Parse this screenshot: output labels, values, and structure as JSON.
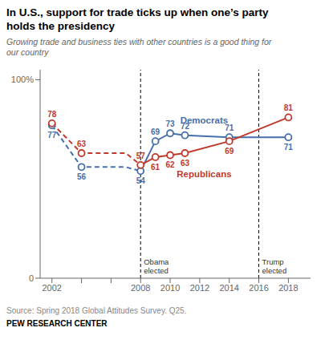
{
  "chart_data": {
    "type": "line",
    "title": "In U.S., support for trade ticks up when one’s party\nholds the presidency",
    "subtitle": "Growing trade and business ties with other countries is a good thing for\nour country",
    "source": "Source: Spring 2018 Global Attitudes Survey. Q25.",
    "footer": "PEW RESEARCH CENTER",
    "x": [
      2002,
      2004,
      2007,
      2008,
      2009,
      2010,
      2011,
      2014,
      2018
    ],
    "series": [
      {
        "name": "Democrats",
        "color": "#476fa9",
        "line_style": "dashed",
        "marker": "circle",
        "values": [
          77,
          56,
          56,
          54,
          null,
          null,
          null,
          null,
          null
        ],
        "value_labels": [
          "77",
          "56",
          null,
          null,
          null,
          null,
          null,
          null,
          null
        ]
      },
      {
        "name": "Republicans",
        "color": "#c0392b",
        "line_style": "dashed",
        "marker": "circle",
        "values": [
          78,
          63,
          63,
          57,
          null,
          null,
          null,
          null,
          null
        ],
        "value_labels": [
          "78",
          "63",
          null,
          null,
          null,
          null,
          null,
          null,
          null
        ]
      },
      {
        "name": "Democrats",
        "color": "#476fa9",
        "line_style": "solid",
        "marker": "circle",
        "data_labels": true,
        "values": [
          null,
          null,
          null,
          54,
          69,
          73,
          72,
          71,
          71
        ]
      },
      {
        "name": "Republicans",
        "color": "#c0392b",
        "line_style": "solid",
        "marker": "circle",
        "data_labels": true,
        "values": [
          null,
          null,
          null,
          57,
          61,
          62,
          63,
          69,
          81
        ]
      }
    ],
    "xlim": [
      2001.2,
      2019.5
    ],
    "xticks": [
      2002,
      {
        "value": 2004,
        "label": null
      },
      {
        "value": 2006,
        "label": null
      },
      2008,
      2010,
      2012,
      2014,
      2016,
      2018
    ],
    "ylim": [
      0,
      105
    ],
    "yticks": [
      0,
      {
        "value": 100,
        "label": "100%"
      }
    ],
    "grid": false,
    "vlines": [
      {
        "x": 2008,
        "label": "Obama\nelected"
      },
      {
        "x": 2016,
        "label": "Trump\nelected"
      }
    ],
    "annotations": [
      {
        "text": "Democrats",
        "x": 2012.3,
        "y": 78,
        "color": "#476fa9"
      },
      {
        "text": "Republicans",
        "x": 2012.3,
        "y": 51,
        "color": "#c0392b"
      }
    ]
  }
}
